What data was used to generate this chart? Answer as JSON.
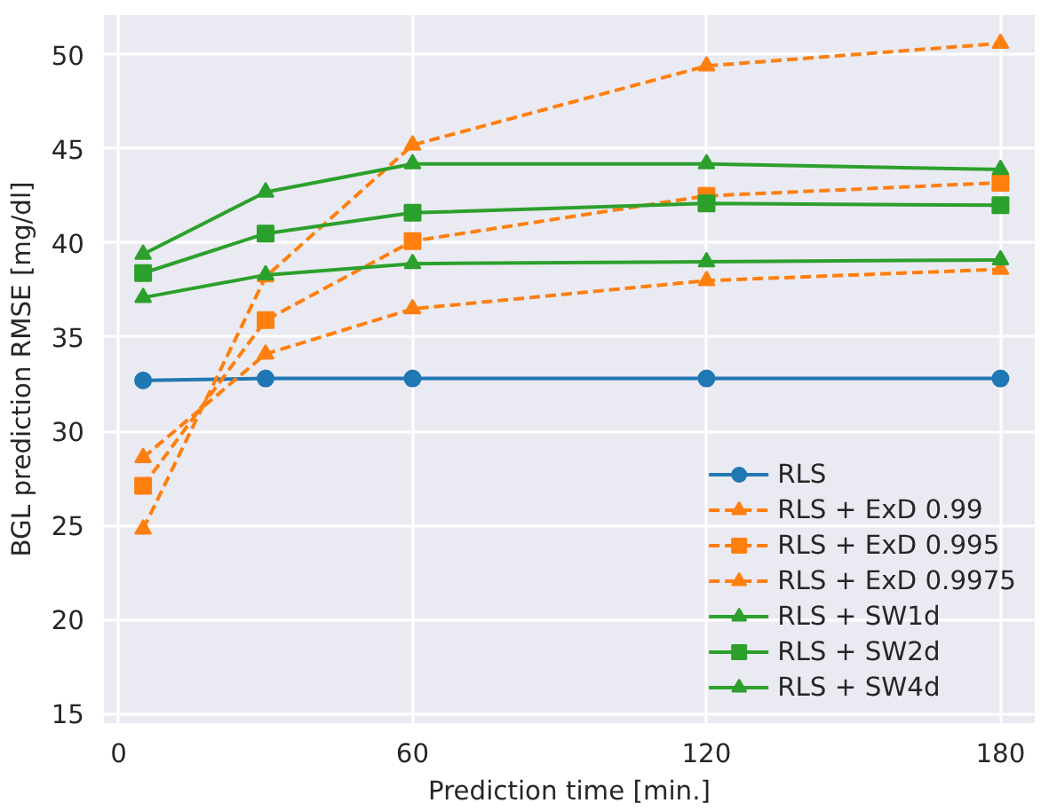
{
  "chart_data": {
    "type": "line",
    "xlabel": "Prediction time [min.]",
    "ylabel": "BGL prediction RMSE [mg/dl]",
    "x": [
      5,
      30,
      60,
      120,
      180
    ],
    "series": [
      {
        "name": "RLS",
        "color": "#1f77b4",
        "marker": "circle",
        "line_style": "solid",
        "values": [
          32.7,
          32.8,
          32.8,
          32.8,
          32.8
        ]
      },
      {
        "name": "RLS + ExD 0.99",
        "color": "#ff7f0e",
        "marker": "triangle",
        "line_style": "dashed",
        "values": [
          24.8,
          38.2,
          45.2,
          49.4,
          50.6
        ]
      },
      {
        "name": "RLS + ExD 0.995",
        "color": "#ff7f0e",
        "marker": "square",
        "line_style": "dashed",
        "values": [
          27.1,
          35.9,
          40.1,
          42.5,
          43.2
        ]
      },
      {
        "name": "RLS + ExD 0.9975",
        "color": "#ff7f0e",
        "marker": "triangle",
        "line_style": "dashed",
        "values": [
          28.6,
          34.1,
          36.5,
          38.0,
          38.6
        ]
      },
      {
        "name": "RLS + SW1d",
        "color": "#2ca02c",
        "marker": "triangle",
        "line_style": "solid",
        "values": [
          39.4,
          42.7,
          44.2,
          44.2,
          43.9
        ]
      },
      {
        "name": "RLS + SW2d",
        "color": "#2ca02c",
        "marker": "square",
        "line_style": "solid",
        "values": [
          38.4,
          40.5,
          41.6,
          42.1,
          42.0
        ]
      },
      {
        "name": "RLS + SW4d",
        "color": "#2ca02c",
        "marker": "triangle",
        "line_style": "solid",
        "values": [
          37.1,
          38.3,
          38.9,
          39.0,
          39.1
        ]
      }
    ],
    "xlim": [
      -3,
      187
    ],
    "ylim": [
      14.5,
      52.1
    ],
    "xticks": [
      0,
      60,
      120,
      180
    ],
    "yticks": [
      15,
      20,
      25,
      30,
      35,
      40,
      45,
      50
    ],
    "grid": true,
    "legend": "bottom right"
  }
}
